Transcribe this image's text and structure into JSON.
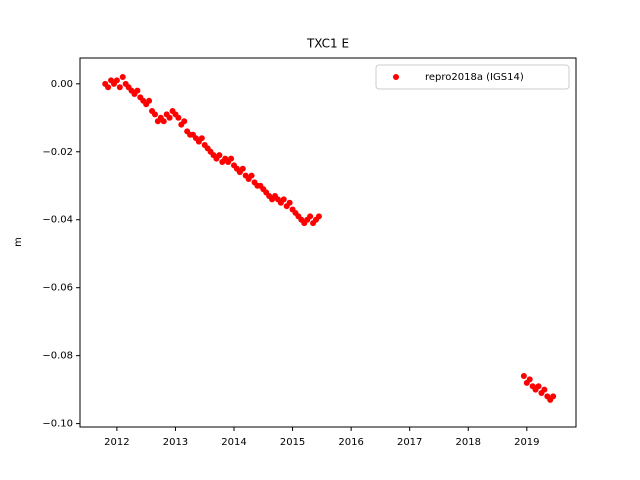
{
  "chart_data": {
    "type": "scatter",
    "title": "TXC1 E",
    "ylabel": "m",
    "legend": "upper right",
    "marker_size": 3,
    "xlim": [
      2011.37,
      2019.84
    ],
    "xticks": [
      2012,
      2013,
      2014,
      2015,
      2016,
      2017,
      2018,
      2019
    ],
    "ylim": [
      -0.101,
      0.0076
    ],
    "yticks": [
      {
        "value": 0,
        "label": "0.00"
      },
      {
        "value": -0.02,
        "label": "−0.02"
      },
      {
        "value": -0.04,
        "label": "−0.04"
      },
      {
        "value": -0.06,
        "label": "−0.06"
      },
      {
        "value": -0.08,
        "label": "−0.08"
      },
      {
        "value": -0.1,
        "label": "−0.10"
      }
    ],
    "series": [
      {
        "name": "repro2018a (IGS14)",
        "color": "#ff0000",
        "x": [
          2011.8,
          2011.85,
          2011.9,
          2011.95,
          2012.0,
          2012.05,
          2012.1,
          2012.15,
          2012.2,
          2012.25,
          2012.3,
          2012.35,
          2012.4,
          2012.45,
          2012.5,
          2012.55,
          2012.6,
          2012.65,
          2012.7,
          2012.75,
          2012.8,
          2012.85,
          2012.9,
          2012.95,
          2013.0,
          2013.05,
          2013.1,
          2013.15,
          2013.2,
          2013.25,
          2013.3,
          2013.35,
          2013.4,
          2013.45,
          2013.5,
          2013.55,
          2013.6,
          2013.65,
          2013.7,
          2013.75,
          2013.8,
          2013.85,
          2013.9,
          2013.95,
          2014.0,
          2014.05,
          2014.1,
          2014.15,
          2014.2,
          2014.25,
          2014.3,
          2014.35,
          2014.4,
          2014.45,
          2014.5,
          2014.55,
          2014.6,
          2014.65,
          2014.7,
          2014.75,
          2014.8,
          2014.85,
          2014.9,
          2014.95,
          2015.0,
          2015.05,
          2015.1,
          2015.15,
          2015.2,
          2015.25,
          2015.3,
          2015.35,
          2015.4,
          2015.45,
          2018.95,
          2019.0,
          2019.05,
          2019.1,
          2019.15,
          2019.2,
          2019.25,
          2019.3,
          2019.35,
          2019.4,
          2019.45
        ],
        "values": [
          0.0,
          -0.001,
          0.001,
          0.0,
          0.001,
          -0.001,
          0.002,
          0.0,
          -0.001,
          -0.002,
          -0.003,
          -0.002,
          -0.004,
          -0.005,
          -0.006,
          -0.005,
          -0.008,
          -0.009,
          -0.011,
          -0.01,
          -0.011,
          -0.009,
          -0.01,
          -0.008,
          -0.009,
          -0.01,
          -0.012,
          -0.011,
          -0.014,
          -0.015,
          -0.015,
          -0.016,
          -0.017,
          -0.016,
          -0.018,
          -0.019,
          -0.02,
          -0.021,
          -0.022,
          -0.021,
          -0.023,
          -0.022,
          -0.023,
          -0.022,
          -0.024,
          -0.025,
          -0.026,
          -0.025,
          -0.027,
          -0.028,
          -0.027,
          -0.029,
          -0.03,
          -0.03,
          -0.031,
          -0.032,
          -0.033,
          -0.034,
          -0.033,
          -0.034,
          -0.035,
          -0.034,
          -0.036,
          -0.035,
          -0.037,
          -0.038,
          -0.039,
          -0.04,
          -0.041,
          -0.04,
          -0.039,
          -0.041,
          -0.04,
          -0.039,
          -0.086,
          -0.088,
          -0.087,
          -0.089,
          -0.09,
          -0.089,
          -0.091,
          -0.09,
          -0.092,
          -0.093,
          -0.092
        ]
      }
    ]
  }
}
